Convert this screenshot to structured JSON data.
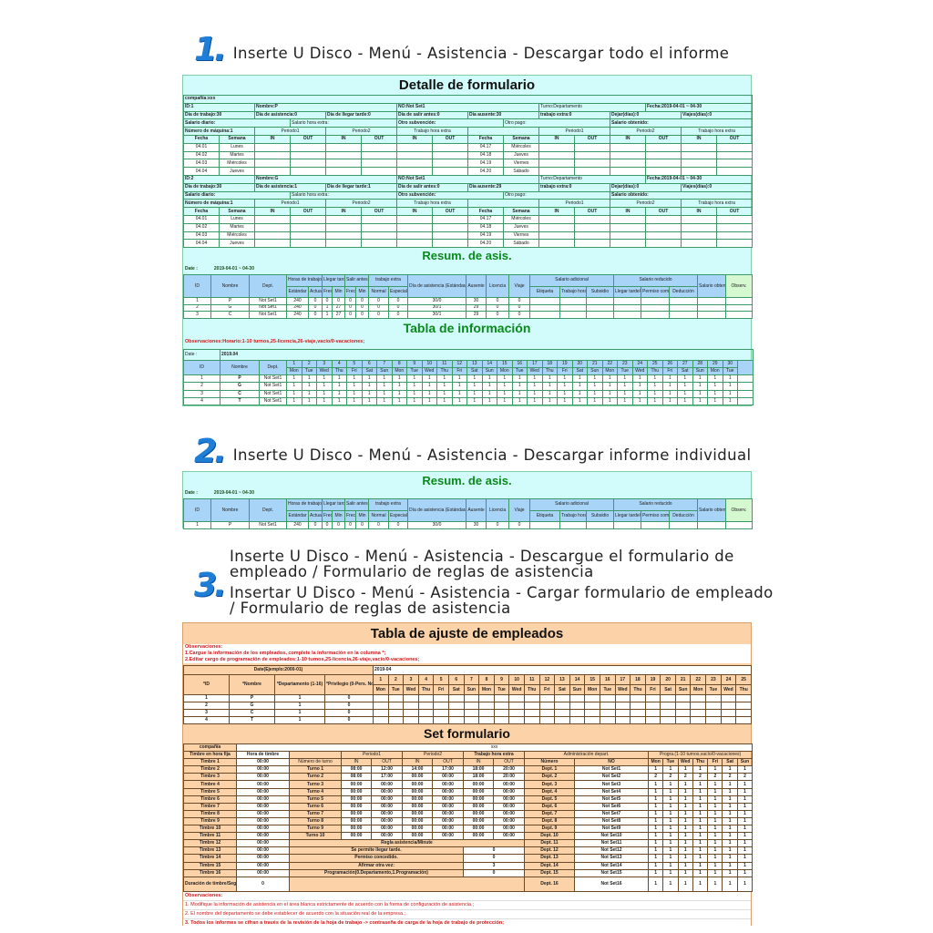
{
  "steps": [
    {
      "num": "1.",
      "lines": [
        "Inserte U Disco - Menú - Asistencia - Descargar todo el informe"
      ]
    },
    {
      "num": "2.",
      "lines": [
        "Inserte U Disco - Menú - Asistencia - Descargar informe individual"
      ]
    },
    {
      "num": "3.",
      "lines": [
        "Inserte U Disco - Menú - Asistencia - Descargue el formulario de",
        "empleado / Formulario de reglas de asistencia",
        "Insertar U Disco - Menú - Asistencia - Cargar formulario de empleado",
        "/ Formulario de reglas de asistencia"
      ]
    }
  ],
  "detail": {
    "title": "Detalle de formulario",
    "company": "compañía:xxx",
    "pay_labels": [
      "Salario diario:",
      "Salario hora extra:",
      "Otro subvención:",
      "Otro pago:",
      "Salario obtenido:"
    ],
    "periods": [
      "Periodo1",
      "Periodo2",
      "Trabajo hora extra"
    ],
    "col_headers": [
      "Fecha",
      "Semana",
      "IN",
      "OUT",
      "IN",
      "OUT",
      "IN",
      "OUT",
      "Fecha",
      "Semana",
      "IN",
      "OUT",
      "IN",
      "OUT",
      "IN",
      "OUT"
    ],
    "dates": [
      {
        "left": [
          "04.01",
          "Lunes"
        ],
        "right": [
          "04.17",
          "Miércoles"
        ]
      },
      {
        "left": [
          "04.02",
          "Martes"
        ],
        "right": [
          "04.18",
          "Jueves"
        ]
      },
      {
        "left": [
          "04.03",
          "Miércoles"
        ],
        "right": [
          "04.19",
          "Viernes"
        ]
      },
      {
        "left": [
          "04.04",
          "Jueves"
        ],
        "right": [
          "04.20",
          "Sábado"
        ]
      }
    ],
    "employees": [
      {
        "machine": "Número de máquina:1",
        "info": [
          "ID:1",
          "Nombre:P",
          "NO:Not Set1",
          "Turno:Departamento",
          "Fecha:2019-04-01 ~ 04-30"
        ],
        "stats": [
          "Día de trabajo:30",
          "Día de asistencia:0",
          "Día de llegar tarde:0",
          "Día de salir antes:0",
          "Día ausente:30",
          "trabajo extra:0",
          "Dejar(días):0",
          "Viajes(días):0"
        ]
      },
      {
        "machine": "Número de máquina:1",
        "info": [
          "ID:2",
          "Nombre:G",
          "NO:Not Set1",
          "Turno:Departamento",
          "Fecha:2019-04-01 ~ 04-30"
        ],
        "stats": [
          "Día de trabajo:30",
          "Día de asistencia:1",
          "Día de llegar tarde:1",
          "Día de salir antes:0",
          "Día ausente:29",
          "trabajo extra:0",
          "Dejar(días):0",
          "Viajes(días):0"
        ]
      }
    ]
  },
  "resum": {
    "title": "Resum. de asis.",
    "date_label": "Date :",
    "date_value": "2019-04-01 ~ 04-30",
    "groups": [
      "ID",
      "Nombre",
      "Dept.",
      "Horas de trabajo",
      "Llegar tarde",
      "Salir antes",
      "trabajo extra",
      "Día de asistencia (Estándar/Actual)",
      "Ausente",
      "Licencia",
      "Viaje",
      "Salario adicional",
      "Salario reducido",
      "Salario obtenido",
      "Observ."
    ],
    "subs": [
      "Estándar",
      "Actual",
      "Frecuencia",
      "Min",
      "Frecuencia",
      "Min",
      "Normal",
      "Especial",
      "Etiqueta",
      "Trabajo hora extra",
      "Subsidio",
      "Llegar tarde/Salir antes",
      "Permiso compasivo",
      "Deducción"
    ],
    "rows": [
      [
        "1",
        "P",
        "Not Set1",
        "240",
        "0",
        "0",
        "0",
        "0",
        "0",
        "0",
        "0",
        "30/0",
        "30",
        "0",
        "0",
        "",
        "",
        "",
        "",
        "",
        "",
        "",
        ""
      ],
      [
        "2",
        "G",
        "Not Set1",
        "240",
        "0",
        "1",
        "27",
        "0",
        "0",
        "0",
        "0",
        "30/1",
        "29",
        "0",
        "0",
        "",
        "",
        "",
        "",
        "",
        "",
        "",
        ""
      ],
      [
        "3",
        "C",
        "Not Set1",
        "240",
        "0",
        "1",
        "27",
        "0",
        "0",
        "0",
        "0",
        "30/1",
        "29",
        "0",
        "0",
        "",
        "",
        "",
        "",
        "",
        "",
        "",
        ""
      ]
    ],
    "single_rows": [
      [
        "1",
        "P",
        "Not Set1",
        "240",
        "0",
        "0",
        "0",
        "0",
        "0",
        "0",
        "0",
        "30/0",
        "30",
        "0",
        "0",
        "",
        "",
        "",
        "",
        "",
        "",
        "",
        ""
      ]
    ]
  },
  "info": {
    "title": "Tabla de información",
    "observations": "Observaciones:Horario:1-10 turnos,25-licencia,26-viaje,vacío/0-vacaciones;",
    "date_label": "Date :",
    "date_value": "2019.04",
    "headers": [
      "ID",
      "Nombre",
      "Dept."
    ],
    "days": [
      "1",
      "2",
      "3",
      "4",
      "5",
      "6",
      "7",
      "8",
      "9",
      "10",
      "11",
      "12",
      "13",
      "14",
      "15",
      "16",
      "17",
      "18",
      "19",
      "20",
      "21",
      "22",
      "23",
      "24",
      "25",
      "26",
      "27",
      "28",
      "29",
      "30"
    ],
    "weekdays": [
      "Mon",
      "Tue",
      "Wed",
      "Thu",
      "Fri",
      "Sat",
      "Sun",
      "Mon",
      "Tue",
      "Wed",
      "Thu",
      "Fri",
      "Sat",
      "Sun",
      "Mon",
      "Tue",
      "Wed",
      "Thu",
      "Fri",
      "Sat",
      "Sun",
      "Mon",
      "Tue",
      "Wed",
      "Thu",
      "Fri",
      "Sat",
      "Sun",
      "Mon",
      "Tue"
    ],
    "employees": [
      {
        "id": "1",
        "name": "P",
        "dept": "Not Set1"
      },
      {
        "id": "2",
        "name": "G",
        "dept": "Not Set1"
      },
      {
        "id": "3",
        "name": "C",
        "dept": "Not Set1"
      },
      {
        "id": "4",
        "name": "T",
        "dept": "Not Set1"
      }
    ],
    "cell_value": "1"
  },
  "ajuste": {
    "title": "Tabla de ajuste de empleados",
    "observations": [
      "Observaciones:",
      "1.Cargue la información de los empleados, complete la información en la columna *;",
      "2.Editar cargo de programación de empleados:1-10 turnos,25-licencia,26-viaje,vacío/0-vacaciones;"
    ],
    "date_label": "Date(Ejemplo:2000-01)",
    "date_value": "2019-04",
    "headers": [
      "*ID",
      "*Nombre",
      "*Departamento (1-16)",
      "*Privilegio (0-Pers. Normal, 1-Administrador)"
    ],
    "rows": [
      [
        "1",
        "P",
        "1",
        "0"
      ],
      [
        "2",
        "G",
        "1",
        "0"
      ],
      [
        "3",
        "C",
        "1",
        "0"
      ],
      [
        "4",
        "T",
        "1",
        "0"
      ]
    ]
  },
  "set": {
    "title": "Set formulario",
    "company_label": "compañía",
    "company_value": "xxx",
    "h1": [
      "Timbre en hora fija",
      "Hora de timbre",
      "Periodo1",
      "Periodo2",
      "Trabajo hora extra",
      "Administración depart.",
      "Progra.(1-10 turnos,vacío/0-vacaciones)"
    ],
    "h2": [
      "Número de turno",
      "IN",
      "OUT",
      "IN",
      "OUT",
      "IN",
      "OUT",
      "Número",
      "NO",
      "Mon",
      "Tue",
      "Wed",
      "Thu",
      "Fri",
      "Sat",
      "Sun"
    ],
    "bells": [
      "Timbre 1",
      "Timbre 2",
      "Timbre 3",
      "Timbre 4",
      "Timbre 5",
      "Timbre 6",
      "Timbre 7",
      "Timbre 8",
      "Timbre 9",
      "Timbre 10",
      "Timbre 11",
      "Timbre 12",
      "Timbre 13",
      "Timbre 14",
      "Timbre 15",
      "Timbre 16"
    ],
    "bell_times": [
      "00:00",
      "00:00",
      "00:00",
      "00:00",
      "00:00",
      "00:00",
      "00:00",
      "00:00",
      "00:00",
      "00:00",
      "00:00",
      "00:00",
      "00:00",
      "00:00",
      "00:00",
      "00:00"
    ],
    "duration_label": "Duración de timbre/Segundo",
    "duration_value": "0",
    "shifts": [
      {
        "name": "Turno 1",
        "times": [
          "08:00",
          "12:00",
          "14:00",
          "17:00",
          "18:00",
          "20:00"
        ]
      },
      {
        "name": "Turno 2",
        "times": [
          "08:00",
          "17:00",
          "00:00",
          "00:00",
          "18:00",
          "20:00"
        ]
      },
      {
        "name": "Turno 3",
        "times": [
          "00:00",
          "00:00",
          "00:00",
          "00:00",
          "00:00",
          "00:00"
        ]
      },
      {
        "name": "Turno 4",
        "times": [
          "00:00",
          "00:00",
          "00:00",
          "00:00",
          "00:00",
          "00:00"
        ]
      },
      {
        "name": "Turno 5",
        "times": [
          "00:00",
          "00:00",
          "00:00",
          "00:00",
          "00:00",
          "00:00"
        ]
      },
      {
        "name": "Turno 6",
        "times": [
          "00:00",
          "00:00",
          "00:00",
          "00:00",
          "00:00",
          "00:00"
        ]
      },
      {
        "name": "Turno 7",
        "times": [
          "00:00",
          "00:00",
          "00:00",
          "00:00",
          "00:00",
          "00:00"
        ]
      },
      {
        "name": "Turno 8",
        "times": [
          "00:00",
          "00:00",
          "00:00",
          "00:00",
          "00:00",
          "00:00"
        ]
      },
      {
        "name": "Turno 9",
        "times": [
          "00:00",
          "00:00",
          "00:00",
          "00:00",
          "00:00",
          "00:00"
        ]
      },
      {
        "name": "Turno 10",
        "times": [
          "00:00",
          "00:00",
          "00:00",
          "00:00",
          "00:00",
          "00:00"
        ]
      }
    ],
    "rule_title": "Regla asistencia/Minute",
    "rules": [
      {
        "label": "Se permite llegar tarde.",
        "value": "0"
      },
      {
        "label": "Permiso concedido.",
        "value": "0"
      },
      {
        "label": "Afirmar otra vez:",
        "value": "3"
      },
      {
        "label": "Programación(0.Departamento,1.Programación)",
        "value": "0"
      }
    ],
    "depts": [
      {
        "num": "Dept. 1",
        "no": "Not Set1",
        "prog": [
          "1",
          "1",
          "1",
          "1",
          "1",
          "1",
          "1"
        ]
      },
      {
        "num": "Dept. 2",
        "no": "Not Set2",
        "prog": [
          "2",
          "2",
          "2",
          "2",
          "2",
          "2",
          "2"
        ]
      },
      {
        "num": "Dept. 3",
        "no": "Not Set3",
        "prog": [
          "1",
          "1",
          "1",
          "1",
          "1",
          "1",
          "1"
        ]
      },
      {
        "num": "Dept. 4",
        "no": "Not Set4",
        "prog": [
          "1",
          "1",
          "1",
          "1",
          "1",
          "1",
          "1"
        ]
      },
      {
        "num": "Dept. 5",
        "no": "Not Set5",
        "prog": [
          "1",
          "1",
          "1",
          "1",
          "1",
          "1",
          "1"
        ]
      },
      {
        "num": "Dept. 6",
        "no": "Not Set6",
        "prog": [
          "1",
          "1",
          "1",
          "1",
          "1",
          "1",
          "1"
        ]
      },
      {
        "num": "Dept. 7",
        "no": "Not Set7",
        "prog": [
          "1",
          "1",
          "1",
          "1",
          "1",
          "1",
          "1"
        ]
      },
      {
        "num": "Dept. 8",
        "no": "Not Set8",
        "prog": [
          "1",
          "1",
          "1",
          "1",
          "1",
          "1",
          "1"
        ]
      },
      {
        "num": "Dept. 9",
        "no": "Not Set9",
        "prog": [
          "1",
          "1",
          "1",
          "1",
          "1",
          "1",
          "1"
        ]
      },
      {
        "num": "Dept. 10",
        "no": "Not Set10",
        "prog": [
          "1",
          "1",
          "1",
          "1",
          "1",
          "1",
          "1"
        ]
      },
      {
        "num": "Dept. 11",
        "no": "Not Set11",
        "prog": [
          "1",
          "1",
          "1",
          "1",
          "1",
          "1",
          "1"
        ]
      },
      {
        "num": "Dept. 12",
        "no": "Not Set12",
        "prog": [
          "1",
          "1",
          "1",
          "1",
          "1",
          "1",
          "1"
        ]
      },
      {
        "num": "Dept. 13",
        "no": "Not Set13",
        "prog": [
          "1",
          "1",
          "1",
          "1",
          "1",
          "1",
          "1"
        ]
      },
      {
        "num": "Dept. 14",
        "no": "Not Set14",
        "prog": [
          "1",
          "1",
          "1",
          "1",
          "1",
          "1",
          "1"
        ]
      },
      {
        "num": "Dept. 15",
        "no": "Not Set15",
        "prog": [
          "1",
          "1",
          "1",
          "1",
          "1",
          "1",
          "1"
        ]
      },
      {
        "num": "Dept. 16",
        "no": "Not Set16",
        "prog": [
          "1",
          "1",
          "1",
          "1",
          "1",
          "1",
          "1"
        ]
      }
    ],
    "observations": [
      "Observaciones:",
      "1. Modifique la información de asistencia en el área blanca estrictamente de acuerdo con la forma de configuración de asistencia.;",
      "2. El nombre del departamento se debe establecer de acuerdo con la situación real de la empresa.;",
      "3. Todos los informes se cifran a través de la revisión de la hoja de trabajo -> contraseña de carga de la hoja de trabajo de protección;"
    ]
  },
  "colors": {
    "cyan_panel": "#d2fcfc",
    "orange_panel": "#fcd2a8",
    "header_blue": "#a8d4f8",
    "title_green": "#0a8a1a",
    "note_red": "#d21818",
    "step_blue": "#1f7fd6"
  }
}
